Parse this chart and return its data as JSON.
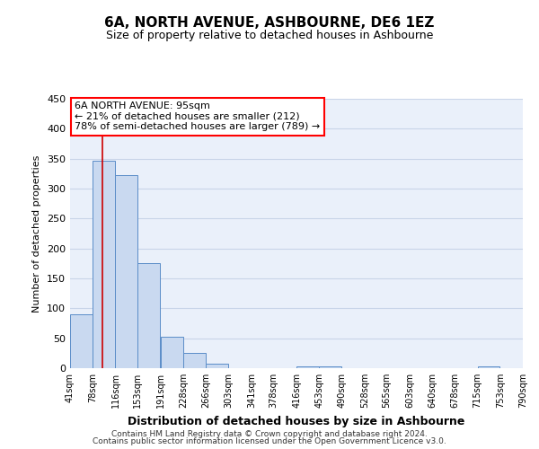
{
  "title": "6A, NORTH AVENUE, ASHBOURNE, DE6 1EZ",
  "subtitle": "Size of property relative to detached houses in Ashbourne",
  "xlabel": "Distribution of detached houses by size in Ashbourne",
  "ylabel": "Number of detached properties",
  "bar_color": "#c9d9f0",
  "bar_edge_color": "#5b8dc8",
  "grid_color": "#c8d4e8",
  "bg_color": "#eaf0fa",
  "annotation_title": "6A NORTH AVENUE: 95sqm",
  "annotation_line1": "← 21% of detached houses are smaller (212)",
  "annotation_line2": "78% of semi-detached houses are larger (789) →",
  "red_line_x": 95,
  "bins": [
    41,
    78,
    116,
    153,
    191,
    228,
    266,
    303,
    341,
    378,
    416,
    453,
    490,
    528,
    565,
    603,
    640,
    678,
    715,
    753,
    790
  ],
  "values": [
    90,
    347,
    322,
    175,
    53,
    25,
    8,
    0,
    0,
    0,
    3,
    3,
    0,
    0,
    0,
    0,
    0,
    0,
    3,
    0,
    0
  ],
  "ylim": [
    0,
    450
  ],
  "yticks": [
    0,
    50,
    100,
    150,
    200,
    250,
    300,
    350,
    400,
    450
  ],
  "footer1": "Contains HM Land Registry data © Crown copyright and database right 2024.",
  "footer2": "Contains public sector information licensed under the Open Government Licence v3.0."
}
